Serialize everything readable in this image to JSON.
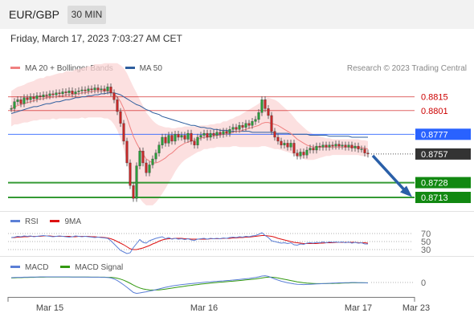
{
  "header": {
    "pair": "EUR/GBP",
    "timeframe": "30 MIN"
  },
  "datetime": "Friday, March 17, 2023 7:03:27 AM CET",
  "legend": {
    "price": [
      {
        "name": "MA 20 + Bollinger Bands",
        "color": "#f08080"
      },
      {
        "name": "MA 50",
        "color": "#2e5e9e"
      }
    ],
    "rsi": [
      {
        "name": "RSI",
        "color": "#5b7fd6"
      },
      {
        "name": "9MA",
        "color": "#dd1111"
      }
    ],
    "macd": [
      {
        "name": "MACD",
        "color": "#5b7fd6"
      },
      {
        "name": "MACD Signal",
        "color": "#339911"
      }
    ]
  },
  "credit": "Research © 2023 Trading Central",
  "chart_data": {
    "type": "candlestick",
    "price_range": [
      0.87,
      0.8835
    ],
    "levels": [
      {
        "label": "0.8815",
        "value": 0.8815,
        "kind": "resistance",
        "color": "#cc0000"
      },
      {
        "label": "0.8801",
        "value": 0.8801,
        "kind": "resistance",
        "color": "#cc0000"
      },
      {
        "label": "0.8777",
        "value": 0.8777,
        "kind": "pivot",
        "color": "#2962ff"
      },
      {
        "label": "0.8757",
        "value": 0.8757,
        "kind": "last",
        "color": "#333333"
      },
      {
        "label": "0.8728",
        "value": 0.8728,
        "kind": "target",
        "color": "#118811"
      },
      {
        "label": "0.8713",
        "value": 0.8713,
        "kind": "target",
        "color": "#118811"
      }
    ],
    "close": [
      0.8803,
      0.881,
      0.8812,
      0.8808,
      0.8814,
      0.8812,
      0.8815,
      0.8813,
      0.8816,
      0.8815,
      0.8817,
      0.8816,
      0.8818,
      0.8817,
      0.8819,
      0.8818,
      0.882,
      0.8819,
      0.8821,
      0.8818,
      0.882,
      0.8821,
      0.8822,
      0.8821,
      0.8823,
      0.8822,
      0.8824,
      0.8822,
      0.8823,
      0.8821,
      0.8825,
      0.8819,
      0.8812,
      0.88,
      0.8788,
      0.877,
      0.8748,
      0.8725,
      0.8712,
      0.8745,
      0.876,
      0.8748,
      0.8738,
      0.8746,
      0.8752,
      0.8758,
      0.8766,
      0.8774,
      0.8768,
      0.8776,
      0.877,
      0.8777,
      0.8774,
      0.8776,
      0.8772,
      0.8778,
      0.877,
      0.8766,
      0.8774,
      0.8776,
      0.8778,
      0.8774,
      0.8778,
      0.8776,
      0.8779,
      0.8777,
      0.878,
      0.8778,
      0.8782,
      0.8784,
      0.8782,
      0.8786,
      0.8784,
      0.8788,
      0.8786,
      0.879,
      0.8792,
      0.8799,
      0.8812,
      0.8803,
      0.8796,
      0.878,
      0.8774,
      0.877,
      0.8766,
      0.8768,
      0.8764,
      0.8768,
      0.8758,
      0.8755,
      0.8759,
      0.8756,
      0.8761,
      0.8763,
      0.8761,
      0.8765,
      0.8764,
      0.8766,
      0.8764,
      0.8766,
      0.8765,
      0.8767,
      0.8765,
      0.8766,
      0.8764,
      0.8766,
      0.8763,
      0.8765,
      0.8762,
      0.8762,
      0.8758,
      0.8757
    ],
    "ma20": [
      0.8803,
      0.8805,
      0.8806,
      0.8807,
      0.8808,
      0.8809,
      0.881,
      0.8811,
      0.8812,
      0.8813,
      0.8813,
      0.8814,
      0.8814,
      0.8815,
      0.8815,
      0.8816,
      0.8816,
      0.8817,
      0.8817,
      0.8817,
      0.8818,
      0.8818,
      0.8819,
      0.8819,
      0.882,
      0.882,
      0.8821,
      0.8821,
      0.8821,
      0.8821,
      0.8821,
      0.882,
      0.8818,
      0.8815,
      0.881,
      0.8803,
      0.8794,
      0.8784,
      0.8775,
      0.8768,
      0.8762,
      0.8757,
      0.8752,
      0.875,
      0.8748,
      0.8748,
      0.8749,
      0.8751,
      0.8753,
      0.8756,
      0.8758,
      0.8761,
      0.8764,
      0.8766,
      0.8768,
      0.8769,
      0.877,
      0.8771,
      0.8772,
      0.8773,
      0.8774,
      0.8774,
      0.8775,
      0.8775,
      0.8776,
      0.8776,
      0.8777,
      0.8777,
      0.8778,
      0.8779,
      0.878,
      0.878,
      0.8781,
      0.8782,
      0.8783,
      0.8784,
      0.8785,
      0.8786,
      0.8788,
      0.8789,
      0.8789,
      0.8788,
      0.8787,
      0.8786,
      0.8784,
      0.8782,
      0.878,
      0.8778,
      0.8775,
      0.8772,
      0.877,
      0.8768,
      0.8766,
      0.8765,
      0.8764,
      0.8764,
      0.8764,
      0.8764,
      0.8764,
      0.8764,
      0.8764,
      0.8764,
      0.8764,
      0.8764,
      0.8764,
      0.8764,
      0.8764,
      0.8764,
      0.8764,
      0.8763,
      0.8763,
      0.8762
    ],
    "ma50": [
      0.8798,
      0.8799,
      0.88,
      0.8801,
      0.8802,
      0.8803,
      0.8804,
      0.8805,
      0.8805,
      0.8806,
      0.8807,
      0.8808,
      0.8808,
      0.8809,
      0.881,
      0.881,
      0.8811,
      0.8812,
      0.8812,
      0.8813,
      0.8814,
      0.8814,
      0.8815,
      0.8815,
      0.8816,
      0.8816,
      0.8817,
      0.8817,
      0.8818,
      0.8818,
      0.8819,
      0.8819,
      0.8819,
      0.8818,
      0.8817,
      0.8815,
      0.8813,
      0.8811,
      0.8809,
      0.8807,
      0.8806,
      0.8804,
      0.8802,
      0.8801,
      0.8799,
      0.8798,
      0.8797,
      0.8795,
      0.8794,
      0.8793,
      0.8792,
      0.8791,
      0.879,
      0.8789,
      0.8788,
      0.8787,
      0.8786,
      0.8786,
      0.8785,
      0.8784,
      0.8784,
      0.8783,
      0.8783,
      0.8782,
      0.8782,
      0.8781,
      0.8781,
      0.8781,
      0.878,
      0.878,
      0.878,
      0.878,
      0.878,
      0.878,
      0.878,
      0.8779,
      0.8779,
      0.8779,
      0.8779,
      0.8779,
      0.8779,
      0.8779,
      0.8778,
      0.8778,
      0.8778,
      0.8778,
      0.8778,
      0.8777,
      0.8777,
      0.8777,
      0.8777,
      0.8777,
      0.8777,
      0.8776,
      0.8776,
      0.8776,
      0.8776,
      0.8776,
      0.8776,
      0.8775,
      0.8775,
      0.8775,
      0.8775,
      0.8775,
      0.8775,
      0.8775,
      0.8774,
      0.8774,
      0.8774,
      0.8774,
      0.8774,
      0.8774
    ],
    "bb_width": [
      0.0018,
      0.0018,
      0.0019,
      0.0019,
      0.0019,
      0.002,
      0.002,
      0.002,
      0.0021,
      0.0021,
      0.0021,
      0.0022,
      0.0022,
      0.0022,
      0.0023,
      0.0023,
      0.0023,
      0.0024,
      0.0024,
      0.0024,
      0.0025,
      0.0025,
      0.0025,
      0.0026,
      0.0026,
      0.0026,
      0.0027,
      0.0027,
      0.0027,
      0.0028,
      0.0028,
      0.0029,
      0.0031,
      0.0034,
      0.0037,
      0.0041,
      0.0045,
      0.0048,
      0.005,
      0.0051,
      0.005,
      0.0049,
      0.0047,
      0.0045,
      0.0043,
      0.004,
      0.0037,
      0.0034,
      0.0031,
      0.0028,
      0.0025,
      0.0022,
      0.002,
      0.0018,
      0.0017,
      0.0016,
      0.0015,
      0.0014,
      0.0013,
      0.0013,
      0.0012,
      0.0012,
      0.0012,
      0.0012,
      0.0012,
      0.0012,
      0.0013,
      0.0013,
      0.0014,
      0.0014,
      0.0015,
      0.0016,
      0.0017,
      0.0018,
      0.0019,
      0.002,
      0.0021,
      0.0022,
      0.0023,
      0.0024,
      0.0025,
      0.0025,
      0.0025,
      0.0024,
      0.0023,
      0.0022,
      0.0021,
      0.002,
      0.0019,
      0.0018,
      0.0017,
      0.0016,
      0.0015,
      0.0014,
      0.0013,
      0.0012,
      0.0011,
      0.001,
      0.0009,
      0.0009,
      0.0008,
      0.0008,
      0.0008,
      0.0008,
      0.0008,
      0.0008,
      0.0008,
      0.0008,
      0.0008,
      0.0008,
      0.0008,
      0.0008
    ],
    "forecast_arrow": {
      "from": 0.8757,
      "to": 0.8715
    },
    "rsi": {
      "range": [
        20,
        80
      ],
      "levels": [
        {
          "label": "70",
          "value": 70
        },
        {
          "label": "50",
          "value": 50
        },
        {
          "label": "30",
          "value": 30
        }
      ],
      "rsi": [
        60,
        61,
        63,
        62,
        64,
        63,
        64,
        62,
        63,
        64,
        65,
        64,
        63,
        62,
        63,
        64,
        63,
        62,
        61,
        62,
        64,
        63,
        62,
        63,
        62,
        61,
        60,
        61,
        60,
        59,
        58,
        52,
        44,
        36,
        28,
        24,
        20,
        22,
        35,
        45,
        55,
        48,
        46,
        52,
        55,
        58,
        60,
        62,
        57,
        60,
        56,
        58,
        56,
        57,
        55,
        57,
        54,
        53,
        56,
        57,
        58,
        56,
        58,
        57,
        58,
        57,
        59,
        58,
        60,
        61,
        60,
        62,
        61,
        63,
        62,
        64,
        65,
        68,
        72,
        65,
        60,
        52,
        50,
        48,
        46,
        47,
        45,
        47,
        42,
        41,
        44,
        43,
        46,
        47,
        46,
        48,
        47,
        49,
        47,
        49,
        48,
        49,
        48,
        49,
        47,
        49,
        46,
        48,
        46,
        47,
        44,
        44
      ],
      "ma9": [
        60,
        60,
        61,
        61,
        62,
        62,
        63,
        63,
        63,
        63,
        64,
        64,
        64,
        63,
        63,
        63,
        63,
        63,
        63,
        62,
        62,
        63,
        63,
        63,
        63,
        62,
        62,
        61,
        61,
        60,
        59,
        57,
        54,
        50,
        46,
        42,
        37,
        32,
        30,
        30,
        32,
        34,
        37,
        40,
        44,
        47,
        51,
        54,
        56,
        57,
        57,
        58,
        58,
        58,
        57,
        57,
        56,
        56,
        56,
        56,
        56,
        56,
        57,
        57,
        57,
        57,
        58,
        58,
        58,
        59,
        59,
        60,
        60,
        61,
        61,
        62,
        63,
        64,
        65,
        65,
        64,
        63,
        61,
        58,
        56,
        54,
        52,
        50,
        48,
        47,
        46,
        45,
        45,
        45,
        45,
        45,
        46,
        46,
        47,
        47,
        47,
        48,
        48,
        48,
        48,
        48,
        48,
        48,
        47,
        47,
        47,
        46
      ]
    },
    "macd": {
      "zero_label": "0",
      "macd": [
        3.0,
        3.1,
        3.2,
        3.2,
        3.3,
        3.3,
        3.4,
        3.4,
        3.4,
        3.5,
        3.5,
        3.5,
        3.5,
        3.5,
        3.5,
        3.5,
        3.5,
        3.5,
        3.5,
        3.4,
        3.4,
        3.4,
        3.4,
        3.4,
        3.3,
        3.3,
        3.3,
        3.3,
        3.2,
        3.2,
        3.1,
        2.8,
        2.2,
        1.2,
        -0.1,
        -1.5,
        -3.0,
        -4.6,
        -6.2,
        -6.8,
        -6.5,
        -6.1,
        -5.8,
        -5.4,
        -5.0,
        -4.5,
        -4.0,
        -3.5,
        -3.0,
        -2.6,
        -2.2,
        -1.9,
        -1.6,
        -1.3,
        -1.1,
        -0.9,
        -0.7,
        -0.5,
        -0.3,
        -0.1,
        0.1,
        0.3,
        0.4,
        0.6,
        0.7,
        0.9,
        1.0,
        1.2,
        1.3,
        1.5,
        1.7,
        1.9,
        2.1,
        2.3,
        2.5,
        2.8,
        3.1,
        3.5,
        4.0,
        4.2,
        3.8,
        3.0,
        2.2,
        1.5,
        0.8,
        0.3,
        -0.2,
        -0.5,
        -0.9,
        -1.1,
        -1.2,
        -1.3,
        -1.2,
        -1.1,
        -1.0,
        -0.9,
        -0.8,
        -0.7,
        -0.6,
        -0.5,
        -0.4,
        -0.3,
        -0.2,
        -0.2,
        -0.1,
        -0.1,
        0.0,
        0.0,
        -0.1,
        -0.1,
        -0.2,
        -0.3
      ],
      "signal": [
        2.8,
        2.9,
        3.0,
        3.0,
        3.1,
        3.1,
        3.2,
        3.2,
        3.3,
        3.3,
        3.3,
        3.4,
        3.4,
        3.4,
        3.4,
        3.4,
        3.4,
        3.4,
        3.4,
        3.4,
        3.4,
        3.4,
        3.4,
        3.4,
        3.4,
        3.3,
        3.3,
        3.3,
        3.3,
        3.3,
        3.2,
        3.2,
        3.0,
        2.6,
        2.1,
        1.4,
        0.5,
        -0.5,
        -1.6,
        -2.6,
        -3.4,
        -4.0,
        -4.4,
        -4.6,
        -4.7,
        -4.7,
        -4.6,
        -4.4,
        -4.1,
        -3.8,
        -3.5,
        -3.2,
        -2.9,
        -2.6,
        -2.3,
        -2.0,
        -1.8,
        -1.5,
        -1.3,
        -1.0,
        -0.8,
        -0.6,
        -0.4,
        -0.2,
        0.0,
        0.2,
        0.3,
        0.5,
        0.7,
        0.8,
        1.0,
        1.2,
        1.4,
        1.6,
        1.8,
        2.0,
        2.2,
        2.5,
        2.8,
        3.1,
        3.3,
        3.3,
        3.1,
        2.8,
        2.4,
        2.0,
        1.6,
        1.2,
        0.8,
        0.4,
        0.1,
        -0.2,
        -0.4,
        -0.5,
        -0.6,
        -0.7,
        -0.7,
        -0.7,
        -0.7,
        -0.6,
        -0.6,
        -0.5,
        -0.5,
        -0.4,
        -0.3,
        -0.3,
        -0.2,
        -0.2,
        -0.2,
        -0.2,
        -0.2,
        -0.2
      ]
    },
    "x_ticks": [
      {
        "label": "Mar 15",
        "index": 12
      },
      {
        "label": "Mar 16",
        "index": 60
      },
      {
        "label": "Mar 17",
        "index": 108
      },
      {
        "label": "Mar 23",
        "index": 126
      }
    ]
  }
}
